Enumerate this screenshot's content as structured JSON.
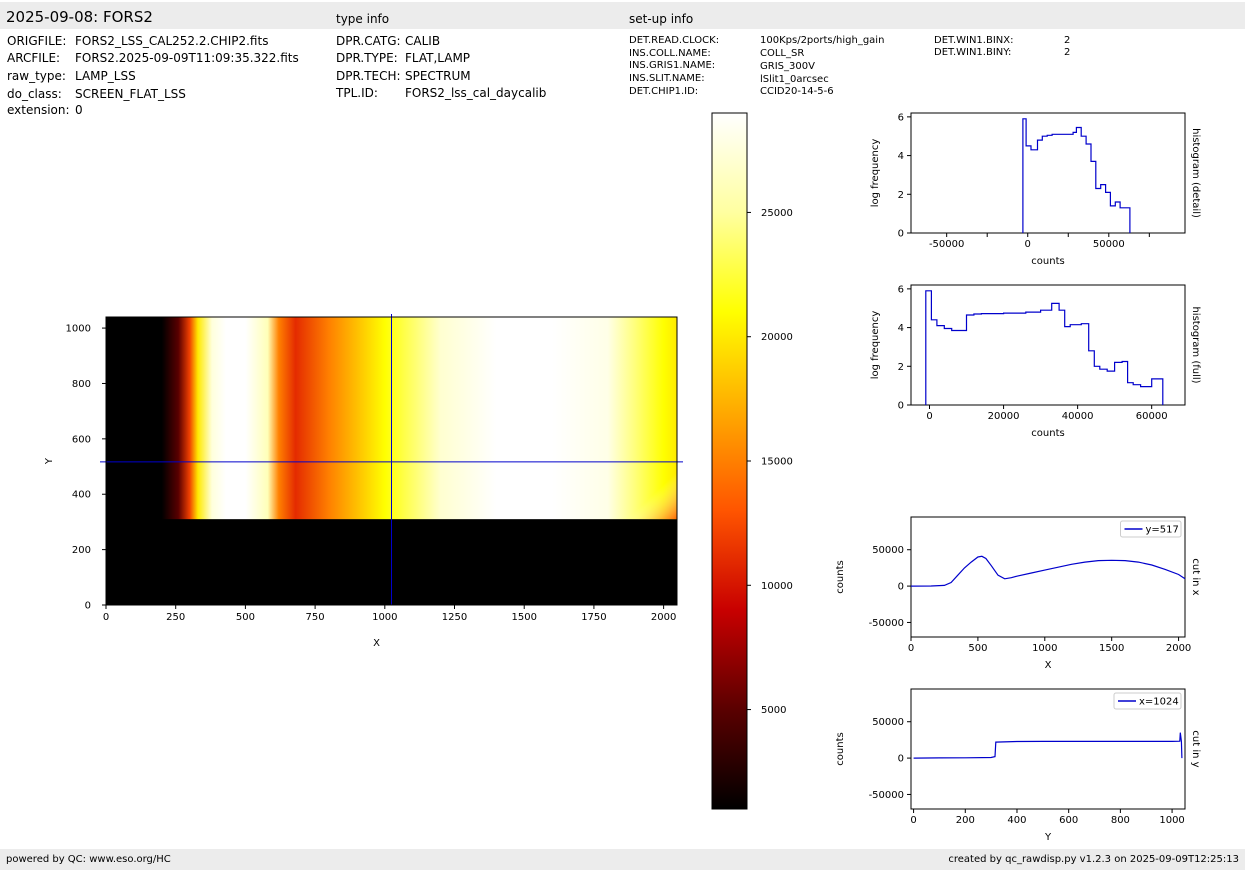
{
  "header": {
    "title": "2025-09-08: FORS2",
    "type_info_label": "type info",
    "setup_info_label": "set-up info"
  },
  "file_info": [
    {
      "key": "ORIGFILE:",
      "value": "FORS2_LSS_CAL252.2.CHIP2.fits"
    },
    {
      "key": "ARCFILE:",
      "value": "FORS2.2025-09-09T11:09:35.322.fits"
    },
    {
      "key": "raw_type:",
      "value": "LAMP_LSS"
    },
    {
      "key": "do_class:",
      "value": "SCREEN_FLAT_LSS"
    },
    {
      "key": "extension:",
      "value": "0"
    }
  ],
  "type_info": [
    {
      "key": "DPR.CATG:",
      "value": "CALIB"
    },
    {
      "key": "DPR.TYPE:",
      "value": "FLAT,LAMP"
    },
    {
      "key": "DPR.TECH:",
      "value": "SPECTRUM"
    },
    {
      "key": "TPL.ID:",
      "value": "FORS2_lss_cal_daycalib"
    }
  ],
  "setup_info": [
    {
      "key": "DET.READ.CLOCK:",
      "value": "100Kps/2ports/high_gain"
    },
    {
      "key": "INS.COLL.NAME:",
      "value": "COLL_SR"
    },
    {
      "key": "INS.GRIS1.NAME:",
      "value": "GRIS_300V"
    },
    {
      "key": "INS.SLIT.NAME:",
      "value": "lSlit1_0arcsec"
    },
    {
      "key": "DET.CHIP1.ID:",
      "value": "CCID20-14-5-6"
    }
  ],
  "setup_info_2": [
    {
      "key": "DET.WIN1.BINX:",
      "value": "2"
    },
    {
      "key": "DET.WIN1.BINY:",
      "value": "2"
    }
  ],
  "footer": {
    "left": "powered by QC: www.eso.org/HC",
    "right": "created by qc_rawdisp.py v1.2.3 on 2025-09-09T12:25:13"
  },
  "colors": {
    "band": "#ececec",
    "line": "#0000cc",
    "cmap": [
      "#000000",
      "#5a0000",
      "#c80000",
      "#ff5500",
      "#ffaa00",
      "#ffff00",
      "#ffffa0",
      "#ffffff"
    ]
  },
  "chart_data": [
    {
      "id": "image",
      "type": "heatmap",
      "xlabel": "X",
      "ylabel": "Y",
      "xlim": [
        0,
        2048
      ],
      "ylim": [
        0,
        1040
      ],
      "xticks": [
        0,
        250,
        500,
        750,
        1000,
        1250,
        1500,
        1750,
        2000
      ],
      "yticks": [
        0,
        200,
        400,
        600,
        800,
        1000
      ],
      "illuminated_y_range": [
        310,
        1040
      ],
      "crosshair": {
        "x": 1024,
        "y": 517
      },
      "column_profile": {
        "x": [
          0,
          200,
          260,
          300,
          330,
          380,
          430,
          500,
          580,
          620,
          680,
          800,
          1000,
          1200,
          1400,
          1600,
          1800,
          1900,
          2000,
          2048
        ],
        "value": [
          0,
          800,
          5000,
          12000,
          20000,
          27500,
          29000,
          29000,
          26000,
          15000,
          11000,
          15000,
          21000,
          27000,
          29000,
          29000,
          28000,
          24000,
          21000,
          20000
        ]
      }
    },
    {
      "id": "colorbar",
      "type": "heatmap",
      "range": [
        1000,
        29000
      ],
      "ticks": [
        5000,
        10000,
        15000,
        20000,
        25000
      ]
    },
    {
      "id": "hist_detail",
      "type": "line",
      "title": "histogram (detail)",
      "xlabel": "counts",
      "ylabel": "log frequency",
      "xlim": [
        -72000,
        97000
      ],
      "ylim": [
        0,
        6.2
      ],
      "xticks": [
        -50000,
        0,
        50000
      ],
      "xminor": [
        -25000,
        25000,
        75000
      ],
      "yticks": [
        0,
        2,
        4,
        6
      ],
      "x": [
        -3000,
        -3000,
        -1000,
        2000,
        6000,
        9000,
        12000,
        15000,
        28000,
        30000,
        33000,
        36000,
        39000,
        42000,
        45000,
        48000,
        51000,
        54000,
        57000,
        60000,
        63000,
        63000
      ],
      "y": [
        0,
        5.9,
        4.5,
        4.3,
        4.8,
        5.0,
        5.05,
        5.1,
        5.2,
        5.45,
        5.0,
        4.6,
        3.7,
        2.3,
        2.5,
        2.1,
        1.4,
        1.6,
        1.3,
        1.3,
        0,
        0
      ]
    },
    {
      "id": "hist_full",
      "type": "line",
      "title": "histogram (full)",
      "xlabel": "counts",
      "ylabel": "log frequency",
      "xlim": [
        -5000,
        69000
      ],
      "ylim": [
        0,
        6.2
      ],
      "xticks": [
        0,
        20000,
        40000,
        60000
      ],
      "yticks": [
        0,
        2,
        4,
        6
      ],
      "x": [
        -1000,
        -1000,
        500,
        2000,
        4000,
        6000,
        8500,
        10000,
        12000,
        14000,
        20000,
        26000,
        30000,
        33000,
        35000,
        36500,
        38000,
        41000,
        43000,
        44500,
        46000,
        48000,
        50000,
        52000,
        53500,
        55000,
        57000,
        60000,
        63000,
        63000
      ],
      "y": [
        0,
        5.9,
        4.4,
        4.1,
        3.95,
        3.85,
        3.85,
        4.65,
        4.7,
        4.72,
        4.75,
        4.8,
        4.9,
        5.25,
        4.9,
        4.05,
        4.15,
        4.2,
        2.8,
        2.0,
        1.85,
        1.75,
        2.2,
        2.25,
        1.15,
        1.05,
        0.95,
        1.35,
        1.25,
        0
      ]
    },
    {
      "id": "cut_x",
      "type": "line",
      "title": "cut in x",
      "xlabel": "X",
      "ylabel": "counts",
      "legend": "y=517",
      "legend_position": "top-right",
      "xlim": [
        0,
        2048
      ],
      "ylim": [
        -70000,
        95000
      ],
      "xticks": [
        0,
        500,
        1000,
        1500,
        2000
      ],
      "yticks": [
        -50000,
        0,
        50000
      ],
      "x": [
        0,
        150,
        250,
        300,
        350,
        400,
        450,
        500,
        530,
        560,
        600,
        650,
        700,
        750,
        800,
        900,
        1000,
        1100,
        1200,
        1300,
        1400,
        1500,
        1600,
        1700,
        1800,
        1900,
        2000,
        2048
      ],
      "y": [
        0,
        100,
        1000,
        5000,
        15000,
        25000,
        33000,
        40000,
        41000,
        38000,
        28000,
        15000,
        10000,
        11500,
        14000,
        18000,
        22000,
        26000,
        30000,
        33000,
        35000,
        35500,
        35000,
        33000,
        29000,
        23000,
        16000,
        10000
      ]
    },
    {
      "id": "cut_y",
      "type": "line",
      "title": "cut in y",
      "xlabel": "Y",
      "ylabel": "counts",
      "legend": "x=1024",
      "legend_position": "top-right",
      "xlim": [
        -10,
        1050
      ],
      "ylim": [
        -70000,
        95000
      ],
      "xticks": [
        0,
        200,
        400,
        600,
        800,
        1000
      ],
      "yticks": [
        -50000,
        0,
        50000
      ],
      "x": [
        0,
        100,
        200,
        300,
        315,
        318,
        400,
        500,
        600,
        700,
        800,
        900,
        1000,
        1030,
        1032,
        1036,
        1038
      ],
      "y": [
        0,
        200,
        400,
        800,
        2000,
        22000,
        22800,
        22900,
        23000,
        23000,
        22900,
        23000,
        23000,
        23200,
        35000,
        23000,
        0
      ]
    }
  ]
}
